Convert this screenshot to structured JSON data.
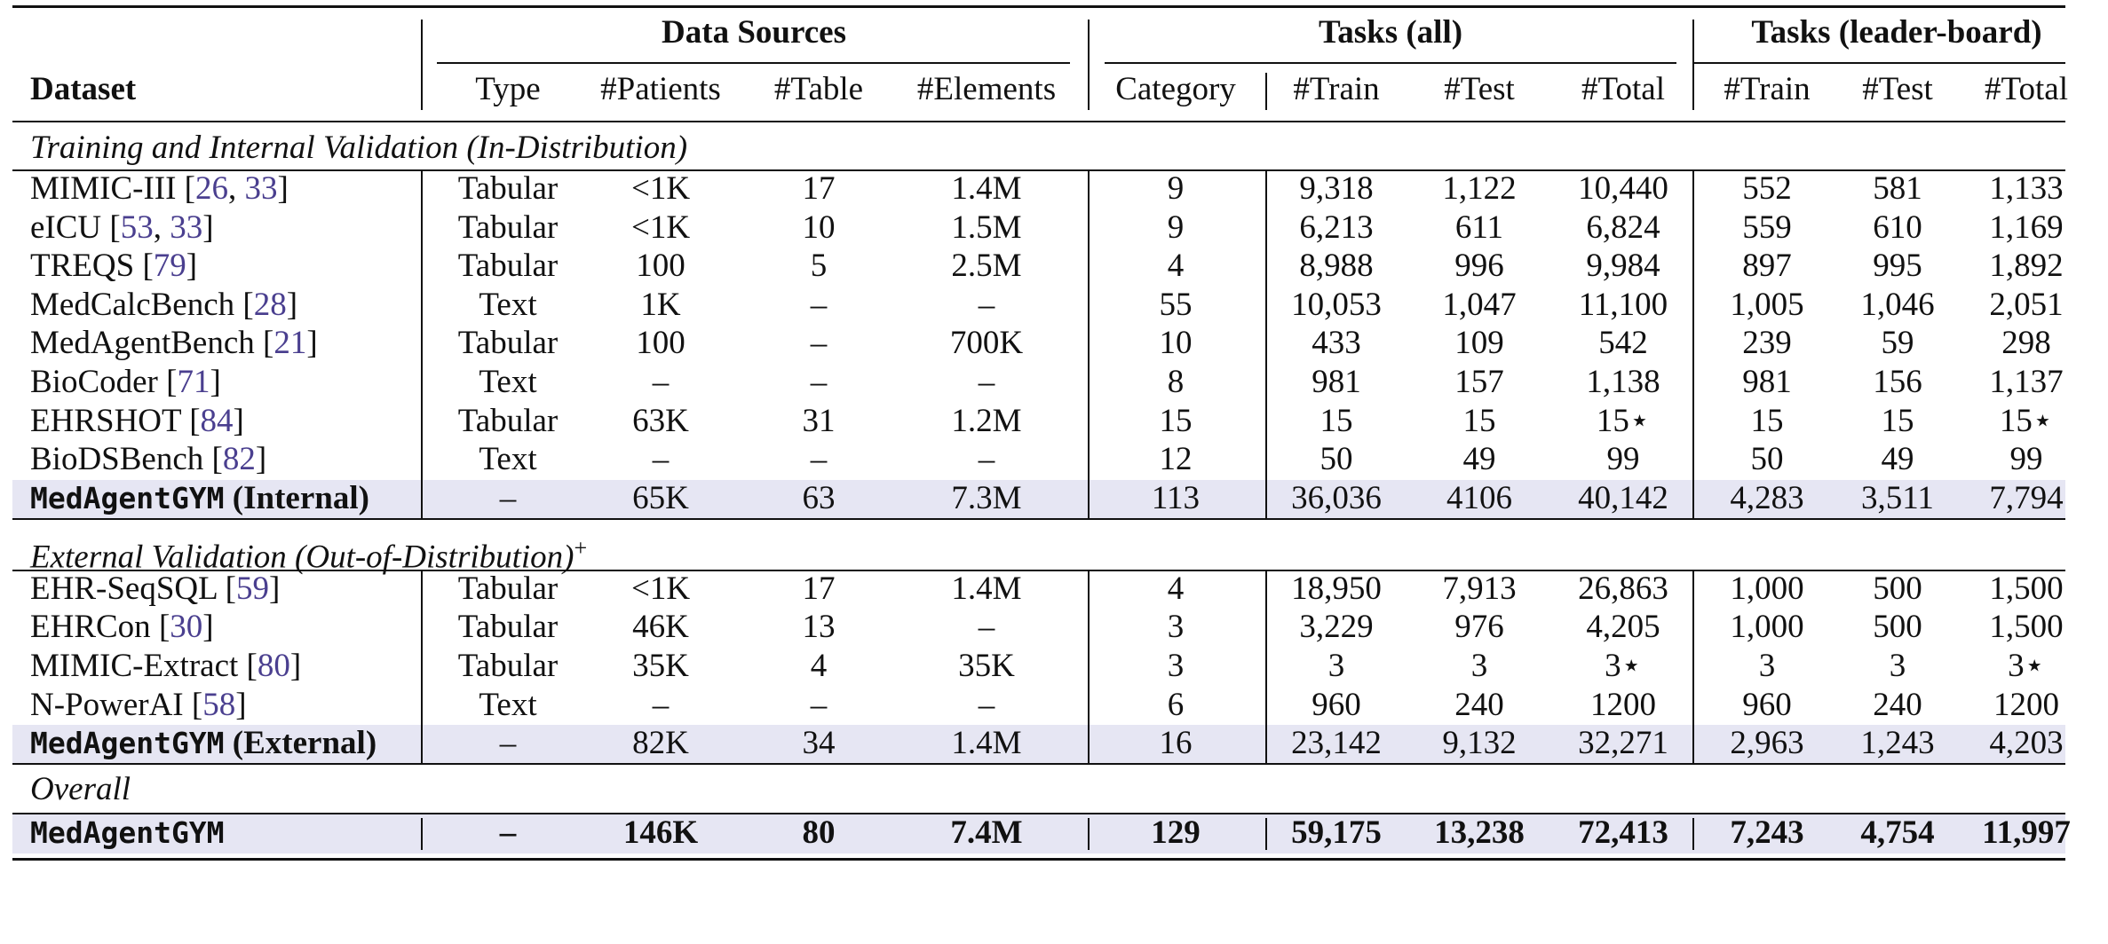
{
  "table": {
    "group_headers": {
      "data_sources": "Data Sources",
      "tasks_all": "Tasks (all)",
      "tasks_leaderboard": "Tasks (leader-board)"
    },
    "columns": [
      "Dataset",
      "Type",
      "#Patients",
      "#Table",
      "#Elements",
      "Category",
      "#Train",
      "#Test",
      "#Total",
      "#Train",
      "#Test",
      "#Total"
    ],
    "sections": [
      {
        "title": "Training and Internal Validation (In-Distribution)",
        "title_suffix": "",
        "rows": [
          {
            "name": "MIMIC-III",
            "refs": [
              "26",
              "33"
            ],
            "cells": [
              "Tabular",
              "<1K",
              "17",
              "1.4M",
              "9",
              "9,318",
              "1,122",
              "10,440",
              "552",
              "581",
              "1,133"
            ]
          },
          {
            "name": "eICU",
            "refs": [
              "53",
              "33"
            ],
            "cells": [
              "Tabular",
              "<1K",
              "10",
              "1.5M",
              "9",
              "6,213",
              "611",
              "6,824",
              "559",
              "610",
              "1,169"
            ]
          },
          {
            "name": "TREQS",
            "refs": [
              "79"
            ],
            "cells": [
              "Tabular",
              "100",
              "5",
              "2.5M",
              "4",
              "8,988",
              "996",
              "9,984",
              "897",
              "995",
              "1,892"
            ]
          },
          {
            "name": "MedCalcBench",
            "refs": [
              "28"
            ],
            "cells": [
              "Text",
              "1K",
              "–",
              "–",
              "55",
              "10,053",
              "1,047",
              "11,100",
              "1,005",
              "1,046",
              "2,051"
            ]
          },
          {
            "name": "MedAgentBench",
            "refs": [
              "21"
            ],
            "cells": [
              "Tabular",
              "100",
              "–",
              "700K",
              "10",
              "433",
              "109",
              "542",
              "239",
              "59",
              "298"
            ]
          },
          {
            "name": "BioCoder",
            "refs": [
              "71"
            ],
            "cells": [
              "Text",
              "–",
              "–",
              "–",
              "8",
              "981",
              "157",
              "1,138",
              "981",
              "156",
              "1,137"
            ]
          },
          {
            "name": "EHRSHOT",
            "refs": [
              "84"
            ],
            "cells": [
              "Tabular",
              "63K",
              "31",
              "1.2M",
              "15",
              "15",
              "15",
              "15⋆",
              "15",
              "15",
              "15⋆"
            ]
          },
          {
            "name": "BioDSBench",
            "refs": [
              "82"
            ],
            "cells": [
              "Text",
              "–",
              "–",
              "–",
              "12",
              "50",
              "49",
              "99",
              "50",
              "49",
              "99"
            ]
          }
        ],
        "summary": {
          "name": "MedAgentGYM",
          "suffix": "(Internal)",
          "cells": [
            "–",
            "65K",
            "63",
            "7.3M",
            "113",
            "36,036",
            "4106",
            "40,142",
            "4,283",
            "3,511",
            "7,794"
          ]
        }
      },
      {
        "title": "External Validation (Out-of-Distribution)",
        "title_suffix": "+",
        "rows": [
          {
            "name": "EHR-SeqSQL",
            "refs": [
              "59"
            ],
            "cells": [
              "Tabular",
              "<1K",
              "17",
              "1.4M",
              "4",
              "18,950",
              "7,913",
              "26,863",
              "1,000",
              "500",
              "1,500"
            ]
          },
          {
            "name": "EHRCon",
            "refs": [
              "30"
            ],
            "cells": [
              "Tabular",
              "46K",
              "13",
              "–",
              "3",
              "3,229",
              "976",
              "4,205",
              "1,000",
              "500",
              "1,500"
            ]
          },
          {
            "name": "MIMIC-Extract",
            "refs": [
              "80"
            ],
            "cells": [
              "Tabular",
              "35K",
              "4",
              "35K",
              "3",
              "3",
              "3",
              "3⋆",
              "3",
              "3",
              "3⋆"
            ]
          },
          {
            "name": "N-PowerAI",
            "refs": [
              "58"
            ],
            "cells": [
              "Text",
              "–",
              "–",
              "–",
              "6",
              "960",
              "240",
              "1200",
              "960",
              "240",
              "1200"
            ]
          }
        ],
        "summary": {
          "name": "MedAgentGYM",
          "suffix": "(External)",
          "cells": [
            "–",
            "82K",
            "34",
            "1.4M",
            "16",
            "23,142",
            "9,132",
            "32,271",
            "2,963",
            "1,243",
            "4,203"
          ]
        }
      }
    ],
    "overall": {
      "title": "Overall",
      "name": "MedAgentGYM",
      "cells": [
        "–",
        "146K",
        "80",
        "7.4M",
        "129",
        "59,175",
        "13,238",
        "72,413",
        "7,243",
        "4,754",
        "11,997"
      ]
    }
  }
}
